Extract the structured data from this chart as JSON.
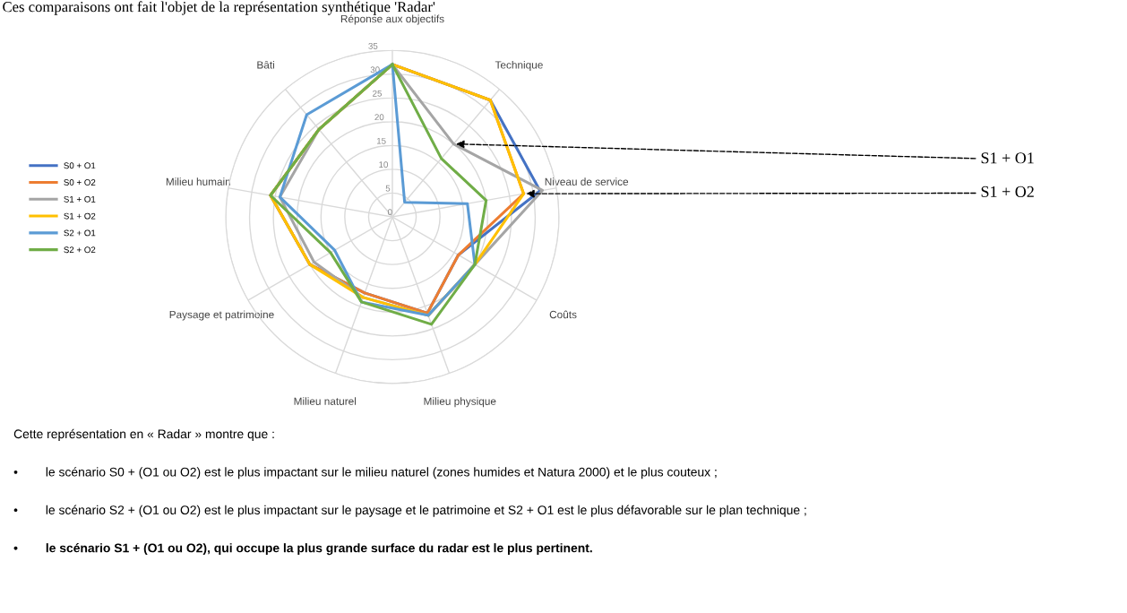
{
  "chart_data": {
    "type": "radar",
    "title": "Ces comparaisons ont fait l'objet de la représentation synthétique 'Radar'",
    "categories": [
      "Réponse aux objectifs",
      "Technique",
      "Niveau de service",
      "Coûts",
      "Milieu physique",
      "Milieu naturel",
      "Paysage et patrimoine",
      "Milieu humain",
      "Bâti"
    ],
    "series": [
      {
        "name": "S0 + O1",
        "color": "#4472c4",
        "values": [
          32,
          32,
          31.5,
          16,
          21.5,
          17,
          20,
          26,
          24
        ]
      },
      {
        "name": "S0 + O2",
        "color": "#ed7d31",
        "values": [
          32,
          32,
          28,
          16,
          21.5,
          17,
          20,
          26,
          24
        ]
      },
      {
        "name": "S1 + O1",
        "color": "#a5a5a5",
        "values": [
          32,
          20,
          32,
          20,
          22,
          18,
          19,
          24,
          24
        ]
      },
      {
        "name": "S1 + O2",
        "color": "#ffc000",
        "values": [
          32,
          32,
          28,
          20,
          22,
          18,
          20,
          26,
          24
        ]
      },
      {
        "name": "S2 + O1",
        "color": "#5b9bd5",
        "values": [
          32,
          4,
          16,
          20,
          22,
          19,
          14,
          24,
          28
        ]
      },
      {
        "name": "S2 + O2",
        "color": "#70ad47",
        "values": [
          32,
          16,
          20,
          20,
          24,
          19,
          15,
          26,
          24
        ]
      }
    ],
    "ylim": [
      0,
      35
    ],
    "yticks": [
      0,
      5,
      10,
      15,
      20,
      25,
      30,
      35
    ],
    "grid": true,
    "legend": "left",
    "annotations": [
      "S1 + O1",
      "S1 + O2",
      "Cette représentation en « Radar » montre que :",
      "•        le scénario S0 + (O1 ou O2) est le plus impactant sur le milieu naturel (zones humides et Natura 2000) et le plus couteux ;",
      "•        le scénario S2 + (O1 ou O2) est le plus impactant sur le paysage et le patrimoine et S2 + O1 est le plus défavorable sur le plan technique ;",
      "•        le scénario S1 + (O1 ou O2), qui occupe la plus grande surface du radar est le plus pertinent."
    ]
  }
}
